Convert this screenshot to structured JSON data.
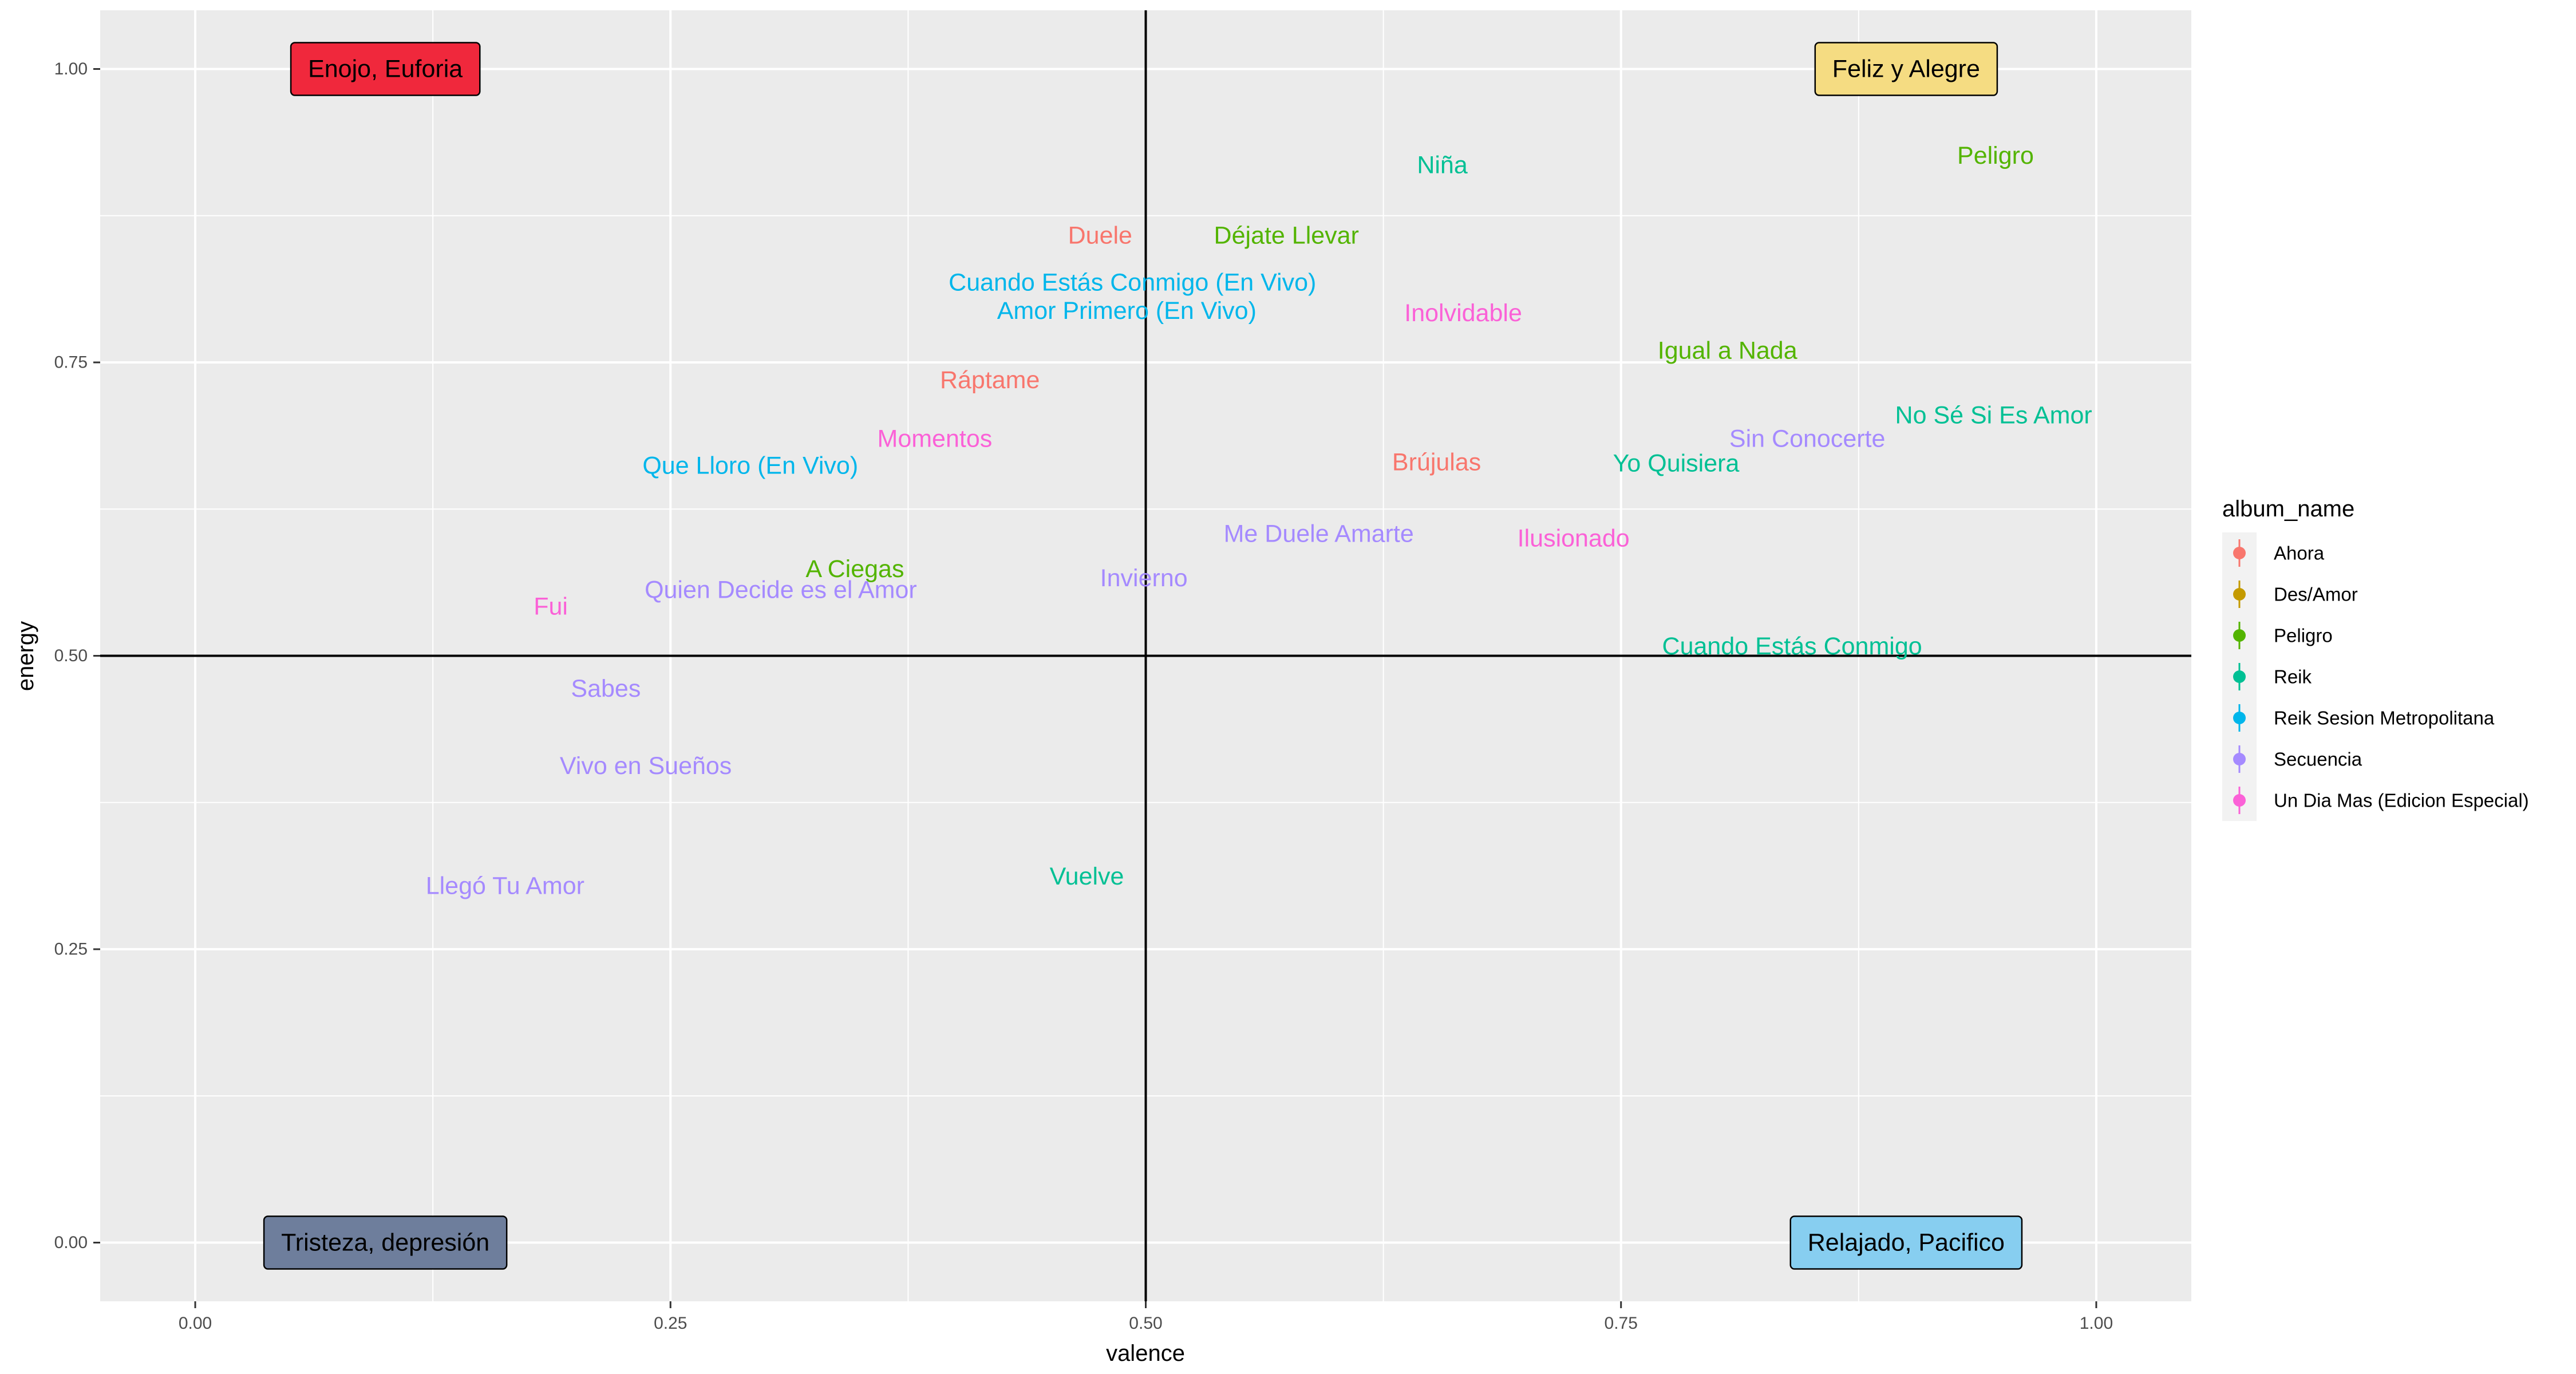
{
  "chart_data": {
    "type": "scatter",
    "xlabel": "valence",
    "ylabel": "energy",
    "xlim": [
      -0.05,
      1.05
    ],
    "ylim": [
      -0.05,
      1.05
    ],
    "x_ticks": [
      {
        "value": 0.0,
        "label": "0.00"
      },
      {
        "value": 0.25,
        "label": "0.25"
      },
      {
        "value": 0.5,
        "label": "0.50"
      },
      {
        "value": 0.75,
        "label": "0.75"
      },
      {
        "value": 1.0,
        "label": "1.00"
      }
    ],
    "y_ticks": [
      {
        "value": 0.0,
        "label": "0.00"
      },
      {
        "value": 0.25,
        "label": "0.25"
      },
      {
        "value": 0.5,
        "label": "0.50"
      },
      {
        "value": 0.75,
        "label": "0.75"
      },
      {
        "value": 1.0,
        "label": "1.00"
      }
    ],
    "reference_lines": {
      "x": 0.5,
      "y": 0.5
    },
    "grid": true,
    "legend": {
      "title": "album_name",
      "position": "right",
      "entries": [
        {
          "name": "Ahora",
          "color": "#F8766D"
        },
        {
          "name": "Des/Amor",
          "color": "#C49A00"
        },
        {
          "name": "Peligro",
          "color": "#53B400"
        },
        {
          "name": "Reik",
          "color": "#00C094"
        },
        {
          "name": "Reik Sesion Metropolitana",
          "color": "#00B6EB"
        },
        {
          "name": "Secuencia",
          "color": "#A58AFF"
        },
        {
          "name": "Un Dia Mas (Edicion Especial)",
          "color": "#FB61D7"
        }
      ]
    },
    "quadrant_labels": [
      {
        "text": "Enojo, Euforia",
        "x": 0.1,
        "y": 1.0,
        "fill": "#F0283C"
      },
      {
        "text": "Feliz y Alegre",
        "x": 0.9,
        "y": 1.0,
        "fill": "#F5DC82"
      },
      {
        "text": "Tristeza, depresión",
        "x": 0.1,
        "y": 0.0,
        "fill": "#6E7E9C"
      },
      {
        "text": "Relajado, Pacifico",
        "x": 0.9,
        "y": 0.0,
        "fill": "#87CEF0"
      }
    ],
    "points": [
      {
        "label": "Niña",
        "album": "Reik",
        "x": 0.656,
        "y": 0.918
      },
      {
        "label": "Peligro",
        "album": "Peligro",
        "x": 0.947,
        "y": 0.926
      },
      {
        "label": "Duele",
        "album": "Ahora",
        "x": 0.476,
        "y": 0.858
      },
      {
        "label": "Déjate Llevar",
        "album": "Peligro",
        "x": 0.574,
        "y": 0.858
      },
      {
        "label": "Cuando Estás Conmigo (En Vivo)",
        "album": "Reik Sesion Metropolitana",
        "x": 0.493,
        "y": 0.818
      },
      {
        "label": "Amor Primero (En Vivo)",
        "album": "Reik Sesion Metropolitana",
        "x": 0.49,
        "y": 0.794
      },
      {
        "label": "Inolvidable",
        "album": "Un Dia Mas (Edicion Especial)",
        "x": 0.667,
        "y": 0.792
      },
      {
        "label": "Igual a Nada",
        "album": "Peligro",
        "x": 0.806,
        "y": 0.76
      },
      {
        "label": "Ráptame",
        "album": "Ahora",
        "x": 0.418,
        "y": 0.735
      },
      {
        "label": "No Sé Si Es Amor",
        "album": "Reik",
        "x": 0.946,
        "y": 0.705
      },
      {
        "label": "Momentos",
        "album": "Un Dia Mas (Edicion Especial)",
        "x": 0.389,
        "y": 0.685
      },
      {
        "label": "Sin Conocerte",
        "album": "Secuencia",
        "x": 0.848,
        "y": 0.685
      },
      {
        "label": "Brújulas",
        "album": "Ahora",
        "x": 0.653,
        "y": 0.665
      },
      {
        "label": "Yo Quisiera",
        "album": "Reik",
        "x": 0.779,
        "y": 0.664
      },
      {
        "label": "Que Lloro (En Vivo)",
        "album": "Reik Sesion Metropolitana",
        "x": 0.292,
        "y": 0.662
      },
      {
        "label": "Me Duele Amarte",
        "album": "Secuencia",
        "x": 0.591,
        "y": 0.604
      },
      {
        "label": "Ilusionado",
        "album": "Un Dia Mas (Edicion Especial)",
        "x": 0.725,
        "y": 0.6
      },
      {
        "label": "A Ciegas",
        "album": "Peligro",
        "x": 0.347,
        "y": 0.574
      },
      {
        "label": "Invierno",
        "album": "Secuencia",
        "x": 0.499,
        "y": 0.566
      },
      {
        "label": "Quien Decide es el Amor",
        "album": "Secuencia",
        "x": 0.308,
        "y": 0.556
      },
      {
        "label": "Fui",
        "album": "Un Dia Mas (Edicion Especial)",
        "x": 0.187,
        "y": 0.542
      },
      {
        "label": "Cuando Estás Conmigo",
        "album": "Reik",
        "x": 0.84,
        "y": 0.508
      },
      {
        "label": "Sabes",
        "album": "Secuencia",
        "x": 0.216,
        "y": 0.472
      },
      {
        "label": "Vivo en Sueños",
        "album": "Secuencia",
        "x": 0.237,
        "y": 0.406
      },
      {
        "label": "Vuelve",
        "album": "Reik",
        "x": 0.469,
        "y": 0.312
      },
      {
        "label": "Llegó Tu Amor",
        "album": "Secuencia",
        "x": 0.163,
        "y": 0.304
      }
    ]
  }
}
